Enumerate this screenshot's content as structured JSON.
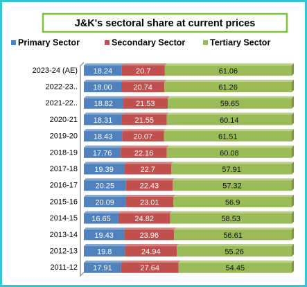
{
  "chart_data": {
    "type": "stacked-barh",
    "title": "J&K's sectoral share at current prices",
    "categories": [
      "2023-24 (AE)",
      "2022-23..",
      "2021-22..",
      "2020-21",
      "2019-20",
      "2018-19",
      "2017-18",
      "2016-17",
      "2015-16",
      "2014-15",
      "2013-14",
      "2012-13",
      "2011-12"
    ],
    "series": [
      {
        "name": "Primary Sector",
        "color": "#4f81bd",
        "values": [
          18.24,
          18.0,
          18.82,
          18.31,
          18.43,
          17.76,
          19.39,
          20.25,
          20.09,
          16.65,
          19.43,
          19.8,
          17.91
        ],
        "value_labels": [
          "18.24",
          "18.00",
          "18.82",
          "18.31",
          "18.43",
          "17.76",
          "19.39",
          "20.25",
          "20.09",
          "16.65",
          "19.43",
          "19.8",
          "17.91"
        ]
      },
      {
        "name": "Secondary Sector",
        "color": "#c0504d",
        "values": [
          20.7,
          20.74,
          21.53,
          21.55,
          20.07,
          22.16,
          22.7,
          22.43,
          23.01,
          24.82,
          23.96,
          24.94,
          27.64
        ]
      },
      {
        "name": "Tertiary Sector",
        "color": "#9bbb59",
        "values": [
          61.06,
          61.26,
          59.65,
          60.14,
          61.51,
          60.08,
          57.91,
          57.32,
          56.9,
          58.53,
          56.61,
          55.26,
          54.45
        ]
      }
    ],
    "xlim": [
      0,
      100
    ]
  }
}
